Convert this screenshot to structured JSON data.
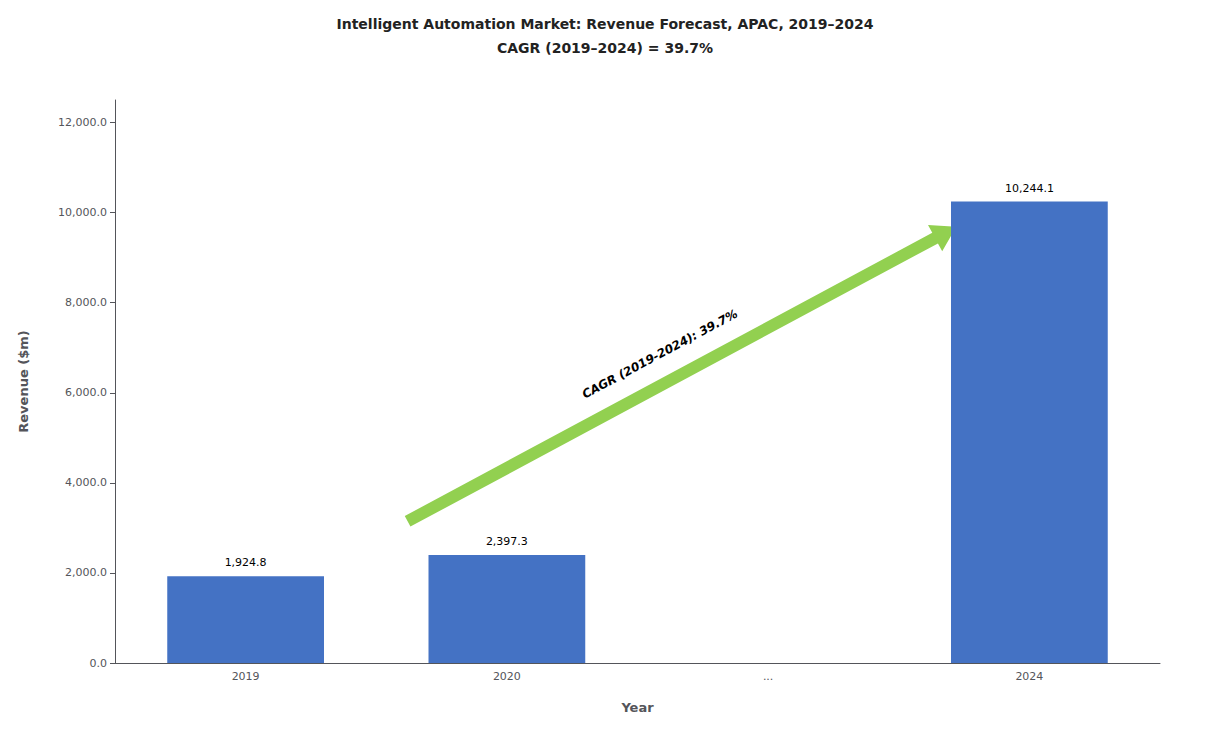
{
  "chart_data": {
    "type": "bar",
    "title": "Intelligent Automation Market: Revenue Forecast, APAC, 2019–2024",
    "subtitle": "CAGR (2019–2024) = 39.7%",
    "xlabel": "Year",
    "ylabel": "Revenue ($m)",
    "categories": [
      "2019",
      "2020",
      "...",
      "2024"
    ],
    "values": [
      1924.8,
      2397.3,
      null,
      10244.1
    ],
    "value_labels": [
      "1,924.8",
      "2,397.3",
      null,
      "10,244.1"
    ],
    "data_labels": true,
    "color": "#4472C4",
    "ylim": [
      0,
      12500
    ],
    "yticks": [
      {
        "value": 0,
        "label": "0.0"
      },
      {
        "value": 2000,
        "label": "2,000.0"
      },
      {
        "value": 4000,
        "label": "4,000.0"
      },
      {
        "value": 6000,
        "label": "6,000.0"
      },
      {
        "value": 8000,
        "label": "8,000.0"
      },
      {
        "value": 10000,
        "label": "10,000.0"
      },
      {
        "value": 12000,
        "label": "12,000.0"
      }
    ],
    "grid": false,
    "annotations": [
      {
        "text": "CAGR (2019-2024): 39.7%",
        "color": "#92D050"
      }
    ]
  }
}
